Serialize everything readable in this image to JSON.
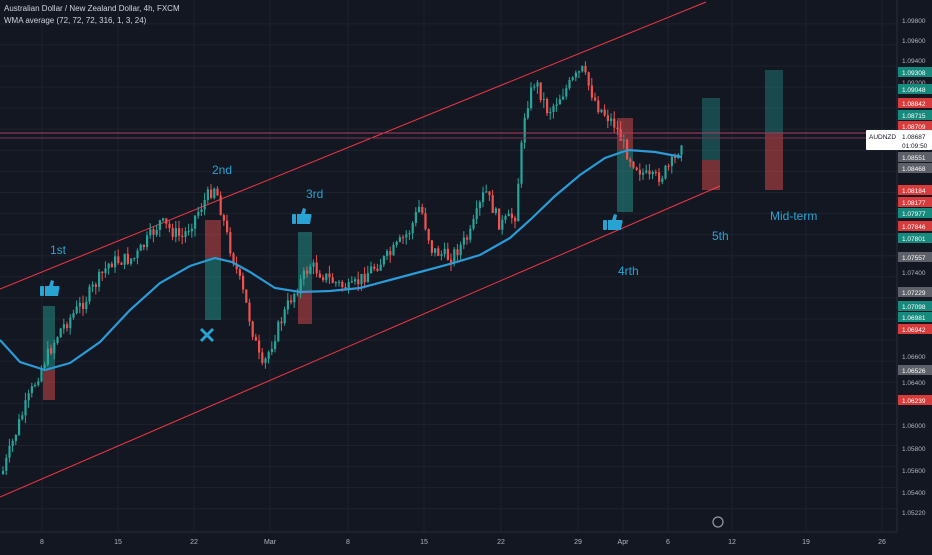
{
  "header": {
    "symbol_line": "Australian Dollar / New Zealand Dollar, 4h, FXCM",
    "indicator_line": "WMA average (72, 72, 72, 316, 1, 3, 24)"
  },
  "price_tag": {
    "symbol": "AUDNZD",
    "price": "1.08687",
    "countdown": "01:09:50"
  },
  "colors": {
    "background": "#131722",
    "grid": "#1e222d",
    "up_candle": "#26a69a",
    "down_candle": "#ef5350",
    "wma": "#2a9bd6",
    "channel": "#f23645",
    "annotation": "#29a3d3"
  },
  "chart_data": {
    "type": "candlestick",
    "x_ticks": [
      "8",
      "15",
      "22",
      "Mar",
      "8",
      "15",
      "22",
      "29",
      "Apr",
      "6",
      "12",
      "19",
      "26"
    ],
    "y_ticks": [
      "1.09800",
      "1.09600",
      "1.09400",
      "1.09200",
      "1.07400",
      "1.06600",
      "1.06400",
      "1.06000",
      "1.05800",
      "1.05600",
      "1.05400",
      "1.05220"
    ],
    "ylim": [
      1.0515,
      1.0995
    ],
    "price_labels": [
      {
        "value": "1.09308",
        "style": "teal"
      },
      {
        "value": "1.09048",
        "style": "teal"
      },
      {
        "value": "1.08842",
        "style": "red"
      },
      {
        "value": "1.08715",
        "style": "teal"
      },
      {
        "value": "1.08709",
        "style": "red"
      },
      {
        "value": "1.08551",
        "style": "gray"
      },
      {
        "value": "1.08468",
        "style": "gray"
      },
      {
        "value": "1.08184",
        "style": "red"
      },
      {
        "value": "1.08177",
        "style": "red"
      },
      {
        "value": "1.07977",
        "style": "teal"
      },
      {
        "value": "1.07846",
        "style": "red"
      },
      {
        "value": "1.07801",
        "style": "teal"
      },
      {
        "value": "1.07557",
        "style": "gray"
      },
      {
        "value": "1.07229",
        "style": "gray"
      },
      {
        "value": "1.07098",
        "style": "teal"
      },
      {
        "value": "1.06981",
        "style": "teal"
      },
      {
        "value": "1.06942",
        "style": "red"
      },
      {
        "value": "1.06526",
        "style": "gray"
      },
      {
        "value": "1.06239",
        "style": "red"
      }
    ],
    "annotations": [
      {
        "text": "1st"
      },
      {
        "text": "2nd"
      },
      {
        "text": "3rd"
      },
      {
        "text": "4rth"
      },
      {
        "text": "5th"
      },
      {
        "text": "Mid-term"
      }
    ]
  }
}
